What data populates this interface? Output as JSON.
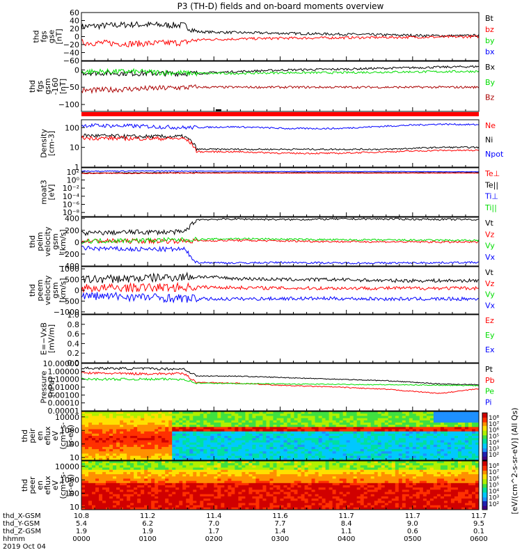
{
  "title": "P3 (TH-D) fields and on-board moments overview",
  "colors": {
    "black": "#000000",
    "red": "#ff0000",
    "green": "#00dd00",
    "blue": "#0000ff",
    "darkred": "#aa0000"
  },
  "chart_data": [
    {
      "type": "line",
      "id": "fgs",
      "ylabel": [
        "thd",
        "fgs",
        "gse",
        "[nT]"
      ],
      "y_ticks": [
        "60",
        "40",
        "20",
        "0",
        "−20",
        "−40",
        "−60"
      ],
      "y_tick_values": [
        60,
        40,
        20,
        0,
        -20,
        -40,
        -60
      ],
      "ylim": [
        -60,
        60
      ],
      "legend": [
        {
          "name": "Bt",
          "color": "#000000"
        },
        {
          "name": "bz",
          "color": "#ff0000"
        },
        {
          "name": "by",
          "color": "#00dd00"
        },
        {
          "name": "bx",
          "color": "#0000ff"
        }
      ],
      "series": [
        {
          "name": "Bt",
          "color": "#000000",
          "x": [
            10.8,
            11.0,
            11.2,
            11.25,
            11.4,
            11.6,
            11.8,
            12.0,
            12.1,
            12.2,
            12.3,
            12.35
          ],
          "y": [
            25,
            30,
            28,
            12,
            10,
            8,
            6,
            4,
            3,
            2,
            2,
            3
          ]
        },
        {
          "name": "bz",
          "color": "#ff0000",
          "x": [
            10.8,
            11.0,
            11.2,
            11.25,
            11.4,
            11.6,
            11.8,
            12.0,
            12.2,
            12.35
          ],
          "y": [
            -15,
            -18,
            -15,
            -8,
            -6,
            -4,
            -3,
            -2,
            -1,
            0
          ]
        }
      ]
    },
    {
      "type": "line",
      "id": "fgs_gsm",
      "ylabel": [
        "thd",
        "fgs",
        "gsm",
        "-160",
        "[nT]"
      ],
      "y_ticks": [
        "0",
        "−50",
        "−100"
      ],
      "y_tick_values": [
        0,
        -50,
        -100
      ],
      "ylim": [
        -120,
        25
      ],
      "legend": [
        {
          "name": "Bx",
          "color": "#000000"
        },
        {
          "name": "By",
          "color": "#00dd00"
        },
        {
          "name": "Bz",
          "color": "#aa0000"
        }
      ],
      "series": [
        {
          "name": "Bx",
          "color": "#000000",
          "x": [
            10.8,
            11.0,
            11.25,
            11.4,
            11.6,
            11.8,
            12.0,
            12.2,
            12.35
          ],
          "y": [
            -8,
            -10,
            -10,
            -5,
            0,
            2,
            5,
            8,
            10
          ]
        },
        {
          "name": "By",
          "color": "#00dd00",
          "x": [
            10.8,
            11.0,
            11.25,
            11.4,
            11.6,
            11.8,
            12.0,
            12.2,
            12.35
          ],
          "y": [
            -5,
            -5,
            -10,
            -10,
            -8,
            -8,
            -6,
            -5,
            -4
          ]
        },
        {
          "name": "Bz",
          "color": "#aa0000",
          "x": [
            10.8,
            11.0,
            11.25,
            11.4,
            11.6,
            11.8,
            12.0,
            12.2,
            12.35
          ],
          "y": [
            -60,
            -55,
            -50,
            -50,
            -50,
            -50,
            -50,
            -50,
            -50
          ]
        }
      ]
    },
    {
      "type": "line",
      "id": "density",
      "scale": "log",
      "ylabel": [
        "Density",
        "[cm-3]"
      ],
      "y_ticks": [
        "100",
        "10",
        "1"
      ],
      "y_tick_values": [
        100,
        10,
        1
      ],
      "ylim": [
        1,
        250
      ],
      "legend": [
        {
          "name": "Ne",
          "color": "#ff0000"
        },
        {
          "name": "Ni",
          "color": "#000000"
        },
        {
          "name": "Npot",
          "color": "#0000ff"
        }
      ],
      "series": [
        {
          "name": "Npot",
          "color": "#0000ff",
          "x": [
            10.8,
            11.0,
            11.2,
            11.4,
            11.6,
            11.8,
            12.0,
            12.2,
            12.35
          ],
          "y": [
            130,
            120,
            100,
            110,
            90,
            90,
            120,
            150,
            140
          ]
        },
        {
          "name": "Ni",
          "color": "#000000",
          "x": [
            10.8,
            11.0,
            11.2,
            11.25,
            11.4,
            11.6,
            11.8,
            12.0,
            12.2,
            12.35
          ],
          "y": [
            40,
            35,
            35,
            8,
            8,
            8,
            8,
            8,
            10,
            10
          ]
        },
        {
          "name": "Ne",
          "color": "#ff0000",
          "x": [
            10.8,
            11.0,
            11.2,
            11.25,
            11.4,
            11.6,
            11.8,
            12.0,
            12.2,
            12.35
          ],
          "y": [
            30,
            28,
            28,
            6,
            6,
            5,
            5,
            6,
            7,
            7
          ]
        }
      ]
    },
    {
      "type": "line",
      "id": "temps",
      "scale": "log",
      "ylabel": [
        "moat3",
        "[eV]"
      ],
      "y_ticks": [
        "10²",
        "10⁰",
        "10⁻²",
        "10⁻⁴",
        "10⁻⁶",
        "10⁻⁸"
      ],
      "y_tick_values": [
        2,
        0,
        -2,
        -4,
        -6,
        -8
      ],
      "ylim": [
        -9,
        3
      ],
      "legend": [
        {
          "name": "Te⊥",
          "color": "#ff0000"
        },
        {
          "name": "Te||",
          "color": "#000000"
        },
        {
          "name": "Ti⊥",
          "color": "#0000ff"
        },
        {
          "name": "Ti||",
          "color": "#00dd00"
        }
      ],
      "series": [
        {
          "name": "Ti⊥",
          "color": "#0000ff",
          "x": [
            10.8,
            11.2,
            11.6,
            12.0,
            12.35
          ],
          "y": [
            2.2,
            2.2,
            2.1,
            2.1,
            2.0
          ]
        },
        {
          "name": "Te||",
          "color": "#000000",
          "x": [
            10.8,
            11.2,
            11.6,
            12.0,
            12.35
          ],
          "y": [
            1.7,
            1.8,
            1.8,
            1.8,
            1.8
          ]
        },
        {
          "name": "Te⊥",
          "color": "#ff0000",
          "x": [
            10.8,
            11.2,
            11.6,
            12.0,
            12.35
          ],
          "y": [
            1.6,
            1.7,
            1.7,
            1.7,
            1.7
          ]
        }
      ]
    },
    {
      "type": "line",
      "id": "peim_vel",
      "ylabel": [
        "thd",
        "peim",
        "velocity",
        "gsm",
        "[km/s]"
      ],
      "y_ticks": [
        "400",
        "200",
        "0",
        "−200",
        "−400"
      ],
      "y_tick_values": [
        400,
        200,
        0,
        -200,
        -400
      ],
      "ylim": [
        -400,
        420
      ],
      "legend": [
        {
          "name": "Vt",
          "color": "#000000"
        },
        {
          "name": "Vz",
          "color": "#ff0000"
        },
        {
          "name": "Vy",
          "color": "#00dd00"
        },
        {
          "name": "Vx",
          "color": "#0000ff"
        }
      ],
      "series": [
        {
          "name": "Vt",
          "color": "#000000",
          "x": [
            10.8,
            11.0,
            11.2,
            11.25,
            11.4,
            11.6,
            11.8,
            12.0,
            12.35
          ],
          "y": [
            150,
            170,
            170,
            380,
            390,
            380,
            390,
            390,
            380
          ]
        },
        {
          "name": "Vz",
          "color": "#ff0000",
          "x": [
            10.8,
            11.2,
            11.4,
            11.8,
            12.35
          ],
          "y": [
            20,
            20,
            30,
            10,
            0
          ]
        },
        {
          "name": "Vy",
          "color": "#00dd00",
          "x": [
            10.8,
            11.2,
            11.4,
            11.8,
            12.35
          ],
          "y": [
            20,
            40,
            60,
            40,
            30
          ]
        },
        {
          "name": "Vx",
          "color": "#0000ff",
          "x": [
            10.8,
            11.0,
            11.2,
            11.25,
            11.4,
            11.6,
            11.8,
            12.0,
            12.35
          ],
          "y": [
            -100,
            -120,
            -120,
            -340,
            -350,
            -340,
            -350,
            -350,
            -340
          ]
        }
      ]
    },
    {
      "type": "line",
      "id": "peem_vel",
      "ylabel": [
        "thd",
        "peem",
        "velocity",
        "gsm",
        "[km/s]"
      ],
      "y_ticks": [
        "1000",
        "500",
        "0",
        "−500",
        "−1000"
      ],
      "y_tick_values": [
        1000,
        500,
        0,
        -500,
        -1000
      ],
      "ylim": [
        -1100,
        1100
      ],
      "legend": [
        {
          "name": "Vt",
          "color": "#000000"
        },
        {
          "name": "Vz",
          "color": "#ff0000"
        },
        {
          "name": "Vy",
          "color": "#00dd00"
        },
        {
          "name": "Vx",
          "color": "#0000ff"
        }
      ],
      "series": [
        {
          "name": "Vt",
          "color": "#000000",
          "x": [
            10.8,
            11.0,
            11.25,
            11.4,
            11.6,
            11.8,
            12.0,
            12.35
          ],
          "y": [
            500,
            550,
            650,
            550,
            500,
            500,
            450,
            450
          ]
        },
        {
          "name": "Vz",
          "color": "#ff0000",
          "x": [
            10.8,
            11.25,
            11.6,
            12.0,
            12.35
          ],
          "y": [
            100,
            150,
            100,
            100,
            100
          ]
        },
        {
          "name": "Vx",
          "color": "#0000ff",
          "x": [
            10.8,
            11.0,
            11.25,
            11.4,
            11.6,
            11.8,
            12.0,
            12.35
          ],
          "y": [
            -250,
            -300,
            -400,
            -400,
            -380,
            -380,
            -400,
            -400
          ]
        }
      ]
    },
    {
      "type": "line",
      "id": "efield",
      "ylabel": [
        "E=−VxB",
        "[mV/m]"
      ],
      "y_ticks": [
        "1.0",
        "0.8",
        "0.6",
        "0.4",
        "0.2",
        "0.0"
      ],
      "y_tick_values": [
        1.0,
        0.8,
        0.6,
        0.4,
        0.2,
        0.0
      ],
      "ylim": [
        0,
        1
      ],
      "legend": [
        {
          "name": "Ez",
          "color": "#ff0000"
        },
        {
          "name": "Ey",
          "color": "#00dd00"
        },
        {
          "name": "Ex",
          "color": "#0000ff"
        }
      ],
      "series": []
    },
    {
      "type": "line",
      "id": "pressure",
      "scale": "log",
      "ylabel": [
        "Pressure",
        "[nPa]"
      ],
      "y_ticks": [
        "10.00000",
        "1.00000",
        "0.10000",
        "0.01000",
        "0.00100",
        "0.00010",
        "0.00001"
      ],
      "y_tick_values": [
        1,
        0,
        -1,
        -2,
        -3,
        -4,
        -5
      ],
      "ylim": [
        -5,
        1
      ],
      "legend": [
        {
          "name": "Pt",
          "color": "#000000"
        },
        {
          "name": "Pb",
          "color": "#ff0000"
        },
        {
          "name": "Pe",
          "color": "#00dd00"
        },
        {
          "name": "Pi",
          "color": "#0000ff"
        }
      ],
      "series": [
        {
          "name": "Pt",
          "color": "#000000",
          "x": [
            10.8,
            11.0,
            11.2,
            11.25,
            11.4,
            11.6,
            11.8,
            12.0,
            12.2,
            12.35
          ],
          "y": [
            0.4,
            0.35,
            0.3,
            -0.6,
            -0.6,
            -0.8,
            -1.0,
            -1.2,
            -1.6,
            -1.7
          ]
        },
        {
          "name": "Pb",
          "color": "#ff0000",
          "x": [
            10.8,
            11.0,
            11.2,
            11.25,
            11.4,
            11.6,
            11.8,
            12.0,
            12.2,
            12.35
          ],
          "y": [
            -0.2,
            -0.3,
            -0.3,
            -1.4,
            -1.5,
            -1.8,
            -2.0,
            -2.3,
            -2.8,
            -2.2
          ]
        },
        {
          "name": "Pe",
          "color": "#00dd00",
          "x": [
            10.8,
            11.2,
            11.25,
            11.6,
            12.0,
            12.35
          ],
          "y": [
            -1.0,
            -1.0,
            -1.5,
            -1.6,
            -1.7,
            -1.8
          ]
        }
      ]
    },
    {
      "type": "heatmap",
      "id": "peir_en",
      "ylabel": [
        "thd",
        "peir",
        "en",
        "eflux",
        "eV",
        "(cm²-s-",
        "sr-eV)"
      ],
      "y_ticks": [
        "10000",
        "1000",
        "100",
        "10"
      ],
      "y_tick_values": [
        10000,
        1000,
        100,
        10
      ]
    },
    {
      "type": "heatmap",
      "id": "peer_en",
      "ylabel": [
        "thd",
        "peer",
        "en",
        "eflux",
        "eV",
        "(cm²-s-",
        "sr-eV)"
      ],
      "y_ticks": [
        "10000",
        "1000",
        "100",
        "10"
      ],
      "y_tick_values": [
        10000,
        1000,
        100,
        10
      ]
    }
  ],
  "colorbars": [
    {
      "ticks": [
        "10⁸",
        "10⁷",
        "10⁶",
        "10⁵",
        "10⁴",
        "10³",
        "10²"
      ]
    },
    {
      "ticks": [
        "10⁸",
        "10⁷",
        "10⁶",
        "10⁵",
        "10⁴",
        "10³",
        "10²"
      ]
    }
  ],
  "colorbar_label": "[eV/(cm^2-s-sr-eV)] (All Qs)",
  "x_axis": {
    "row_labels": [
      "thd_X-GSM",
      "thd_Y-GSM",
      "thd_Z-GSM",
      "hhmm",
      "2019 Oct 04"
    ],
    "x_gsm": [
      "10.8",
      "11.2",
      "11.4",
      "11.6",
      "11.7",
      "11.7",
      "11.7"
    ],
    "y_gsm": [
      "5.4",
      "6.2",
      "7.0",
      "7.7",
      "8.4",
      "9.0",
      "9.5"
    ],
    "z_gsm": [
      "1.9",
      "1.9",
      "1.7",
      "1.4",
      "1.1",
      "0.6",
      "0.1"
    ],
    "hhmm": [
      "0000",
      "0100",
      "0200",
      "0300",
      "0400",
      "0500",
      "0600"
    ]
  }
}
